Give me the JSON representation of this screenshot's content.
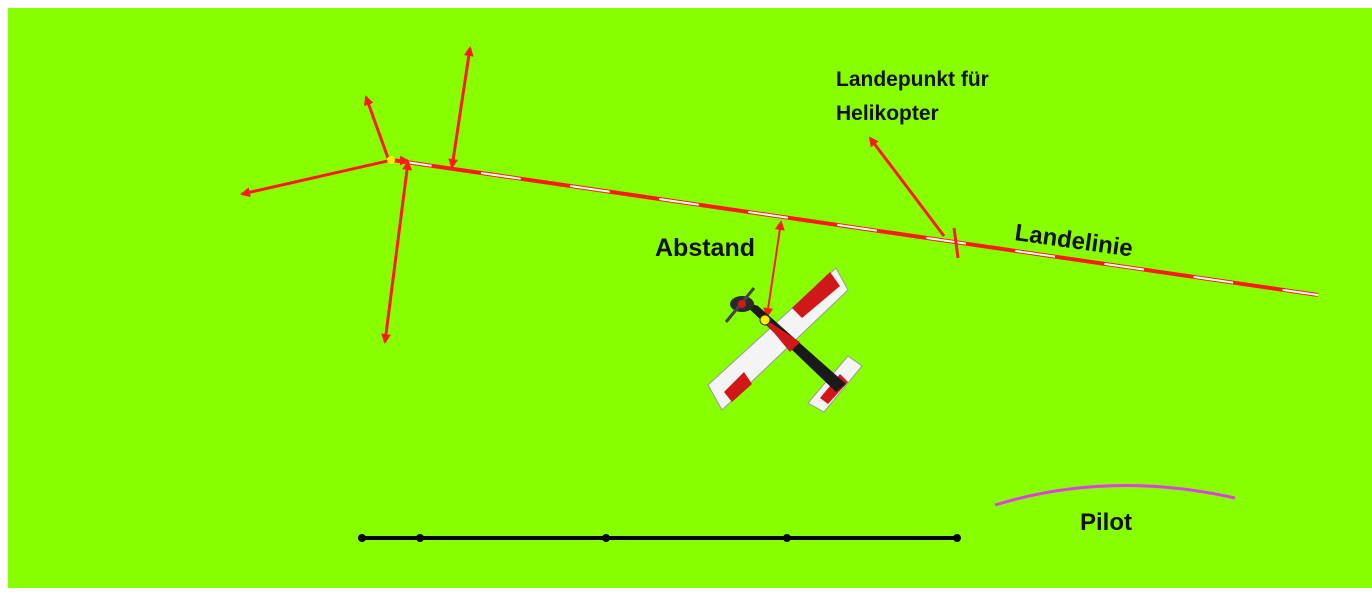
{
  "labels": {
    "heli_landing_point_line1": "Landepunkt für",
    "heli_landing_point_line2": "Helikopter",
    "landing_line": "Landelinie",
    "distance": "Abstand",
    "pilot": "Pilot"
  },
  "colors": {
    "field": "#88ff00",
    "arrow": "#ff1a1a",
    "landing_line_dash": "#ff1a1a",
    "landing_line_gap": "#ffffff",
    "pilot_arc": "#e040e0",
    "scale_bar": "#000000",
    "marker_point": "#ffee00",
    "text": "#111111"
  },
  "icons": {
    "aircraft": "rc-airplane-icon"
  }
}
